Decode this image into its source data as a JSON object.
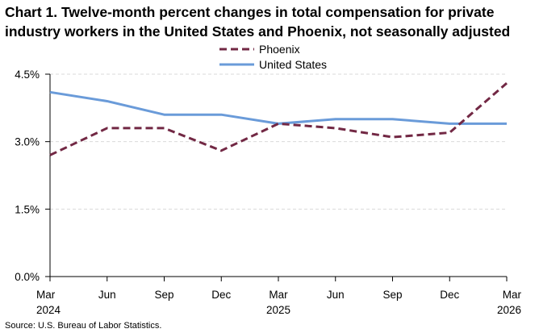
{
  "chart_data": {
    "type": "line",
    "title": "Chart 1. Twelve-month percent changes in total compensation for private industry workers in the United States and Phoenix, not seasonally adjusted",
    "x": [
      {
        "month": "Mar",
        "year": "2024"
      },
      {
        "month": "Jun",
        "year": ""
      },
      {
        "month": "Sep",
        "year": ""
      },
      {
        "month": "Dec",
        "year": ""
      },
      {
        "month": "Mar",
        "year": "2025"
      },
      {
        "month": "Jun",
        "year": ""
      },
      {
        "month": "Sep",
        "year": ""
      },
      {
        "month": "Dec",
        "year": ""
      },
      {
        "month": "Mar",
        "year": "2026"
      }
    ],
    "series": [
      {
        "name": "Phoenix",
        "color": "#722844",
        "dash": "dashed",
        "values": [
          2.7,
          3.3,
          3.3,
          2.8,
          3.4,
          3.3,
          3.1,
          3.2,
          4.3
        ]
      },
      {
        "name": "United States",
        "color": "#6A9BD9",
        "dash": "solid",
        "values": [
          4.1,
          3.9,
          3.6,
          3.6,
          3.4,
          3.5,
          3.5,
          3.4,
          3.4
        ]
      }
    ],
    "ylim": [
      0,
      4.5
    ],
    "yticks": [
      "0.0%",
      "1.5%",
      "3.0%",
      "4.5%"
    ],
    "ytick_values": [
      0,
      1.5,
      3.0,
      4.5
    ],
    "grid": true,
    "legend_placement": "top-center"
  },
  "source": "Source: U.S. Bureau of Labor Statistics."
}
